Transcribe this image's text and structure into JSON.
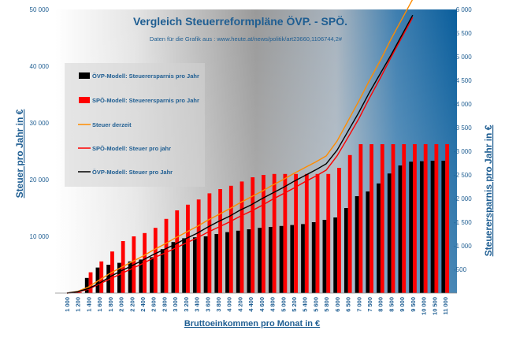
{
  "chart_data": {
    "type": "bar",
    "title": "Vergleich Steuerreformpläne ÖVP. - SPÖ.",
    "subtitle": "Daten für die Grafik aus : www.heute.at/news/politik/art23660,1106744,2#",
    "xlabel": "Bruttoeinkommen pro Monat in €",
    "ylabel_left": "Steuer pro Jahr in €",
    "ylabel_right": "Steuerersparnis pro Jahr in €",
    "ylim_left": [
      0,
      50000
    ],
    "yticks_left": [
      "10 000",
      "20 000",
      "30 000",
      "40 000",
      "50 000"
    ],
    "ylim_right": [
      0,
      6000
    ],
    "yticks_right": [
      "-500",
      "-1 000",
      "-1 500",
      "-2 000",
      "-2 500",
      "-3 000",
      "-3 500",
      "-4 000",
      "-4 500",
      "-5 000",
      "-5 500",
      "-6 000"
    ],
    "categories": [
      "1 000",
      "1 200",
      "1 400",
      "1 600",
      "1 800",
      "2 000",
      "2 200",
      "2 400",
      "2 600",
      "2 800",
      "3 000",
      "3 200",
      "3 400",
      "3 600",
      "3 800",
      "4 000",
      "4 200",
      "4 400",
      "4 600",
      "4 800",
      "5 000",
      "5 200",
      "5 400",
      "5 600",
      "5 800",
      "6 000",
      "6 500",
      "7 000",
      "7 500",
      "8 000",
      "8 500",
      "9 000",
      "9 500",
      "10 000",
      "10 500",
      "11 000"
    ],
    "legend_position": "left-inside",
    "bar_series": [
      {
        "name": "ÖVP-Modell: Steuerersparnis pro Jahr",
        "color": "#000000",
        "axis": "right",
        "values": [
          0,
          20,
          320,
          540,
          600,
          640,
          670,
          710,
          760,
          930,
          1080,
          1160,
          1180,
          1200,
          1250,
          1290,
          1320,
          1350,
          1380,
          1400,
          1420,
          1440,
          1460,
          1500,
          1550,
          1600,
          1800,
          2050,
          2150,
          2320,
          2530,
          2700,
          2780,
          2790,
          2800,
          2800
        ]
      },
      {
        "name": "SPÖ-Modell: Steuerersparnis pro Jahr",
        "color": "#ff0000",
        "axis": "right",
        "values": [
          0,
          20,
          440,
          670,
          880,
          1100,
          1200,
          1270,
          1380,
          1570,
          1750,
          1870,
          1980,
          2110,
          2200,
          2270,
          2360,
          2450,
          2500,
          2520,
          2520,
          2520,
          2520,
          2520,
          2520,
          2650,
          2920,
          3150,
          3150,
          3150,
          3150,
          3150,
          3150,
          3150,
          3150,
          3150
        ]
      }
    ],
    "line_series": [
      {
        "name": "Steuer derzeit",
        "color": "#ff8c00",
        "axis": "left",
        "values": [
          0,
          300,
          1100,
          2300,
          3500,
          4500,
          5500,
          6500,
          7600,
          8600,
          9700,
          10700,
          11700,
          12800,
          13800,
          14800,
          15900,
          16900,
          17900,
          19000,
          20000,
          21100,
          22100,
          23100,
          24200,
          26800,
          30300,
          33800,
          37500,
          41000,
          44800,
          48300,
          51800
        ]
      },
      {
        "name": "SPÖ-Modell: Steuer pro jahr",
        "color": "#ff0000",
        "axis": "left",
        "values": [
          0,
          200,
          700,
          1600,
          2500,
          3400,
          4300,
          5200,
          6200,
          7000,
          7900,
          8800,
          9700,
          10700,
          11600,
          12500,
          13500,
          14400,
          15400,
          16500,
          17500,
          18500,
          19600,
          20600,
          21700,
          24200,
          27400,
          30700,
          34400,
          37900,
          41600,
          45100,
          48600
        ]
      },
      {
        "name": "ÖVP-Modell: Steuer pro Jahr",
        "color": "#000000",
        "axis": "left",
        "values": [
          0,
          250,
          800,
          1750,
          2900,
          3900,
          4800,
          5800,
          6800,
          7700,
          8600,
          9600,
          10500,
          11600,
          12600,
          13500,
          14600,
          15500,
          16600,
          17600,
          18600,
          19700,
          20700,
          21700,
          22800,
          25200,
          28500,
          31800,
          35400,
          38700,
          42000,
          45500,
          49000
        ]
      }
    ]
  }
}
